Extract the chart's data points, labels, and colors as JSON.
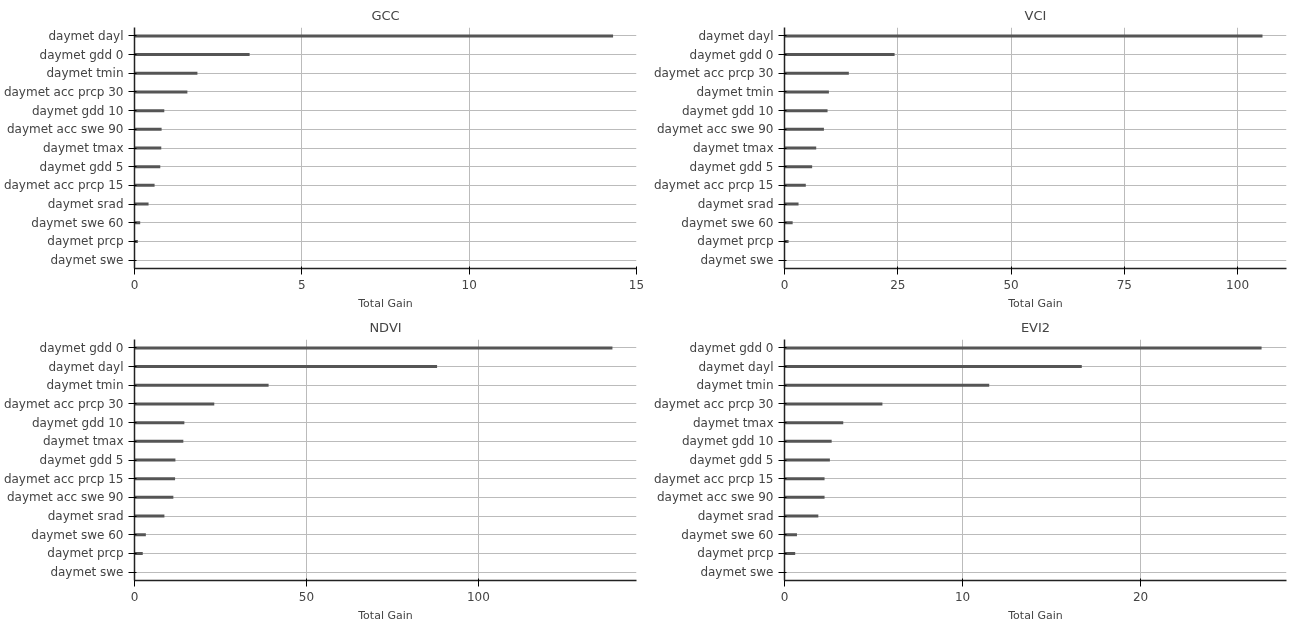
{
  "chart_data": [
    {
      "type": "bar",
      "orientation": "horizontal",
      "title": "GCC",
      "xlabel": "Total Gain",
      "categories": [
        "daymet dayl",
        "daymet gdd 0",
        "daymet tmin",
        "daymet acc prcp 30",
        "daymet gdd 10",
        "daymet acc swe 90",
        "daymet tmax",
        "daymet gdd 5",
        "daymet acc prcp 15",
        "daymet srad",
        "daymet swe 60",
        "daymet prcp",
        "daymet swe"
      ],
      "values": [
        14.3,
        3.44,
        1.88,
        1.58,
        0.89,
        0.81,
        0.8,
        0.77,
        0.6,
        0.42,
        0.17,
        0.1,
        0
      ],
      "color": "#555555",
      "xlim": [
        0,
        15
      ],
      "xticks": [
        0,
        5,
        10,
        15
      ],
      "grid": true
    },
    {
      "type": "bar",
      "orientation": "horizontal",
      "title": "VCI",
      "xlabel": "Total Gain",
      "categories": [
        "daymet dayl",
        "daymet gdd 0",
        "daymet acc prcp 30",
        "daymet tmin",
        "daymet gdd 10",
        "daymet acc swe 90",
        "daymet tmax",
        "daymet gdd 5",
        "daymet acc prcp 15",
        "daymet srad",
        "daymet swe 60",
        "daymet prcp",
        "daymet swe"
      ],
      "values": [
        105.5,
        24.3,
        14.2,
        9.8,
        9.5,
        8.7,
        7.0,
        6.1,
        4.7,
        3.1,
        1.8,
        0.9,
        0
      ],
      "color": "#555555",
      "xlim": [
        0,
        110.8
      ],
      "xticks": [
        0,
        25,
        50,
        75,
        100
      ],
      "grid": true
    },
    {
      "type": "bar",
      "orientation": "horizontal",
      "title": "NDVI",
      "xlabel": "Total Gain",
      "categories": [
        "daymet gdd 0",
        "daymet dayl",
        "daymet tmin",
        "daymet acc prcp 30",
        "daymet gdd 10",
        "daymet tmax",
        "daymet gdd 5",
        "daymet acc prcp 15",
        "daymet acc swe 90",
        "daymet srad",
        "daymet swe 60",
        "daymet prcp",
        "daymet swe"
      ],
      "values": [
        139,
        88,
        39,
        23.2,
        14.5,
        14.2,
        11.9,
        11.8,
        11.3,
        8.7,
        3.3,
        2.4,
        0
      ],
      "color": "#555555",
      "xlim": [
        0,
        146
      ],
      "xticks": [
        0,
        50,
        100
      ],
      "grid": true
    },
    {
      "type": "bar",
      "orientation": "horizontal",
      "title": "EVI2",
      "xlabel": "Total Gain",
      "categories": [
        "daymet gdd 0",
        "daymet dayl",
        "daymet tmin",
        "daymet acc prcp 30",
        "daymet tmax",
        "daymet gdd 10",
        "daymet gdd 5",
        "daymet acc prcp 15",
        "daymet acc swe 90",
        "daymet srad",
        "daymet swe 60",
        "daymet prcp",
        "daymet swe"
      ],
      "values": [
        26.8,
        16.7,
        11.5,
        5.5,
        3.3,
        2.65,
        2.55,
        2.25,
        2.25,
        1.9,
        0.7,
        0.6,
        0
      ],
      "color": "#555555",
      "xlim": [
        0,
        28.2
      ],
      "xticks": [
        0,
        10,
        20
      ],
      "grid": true
    }
  ]
}
